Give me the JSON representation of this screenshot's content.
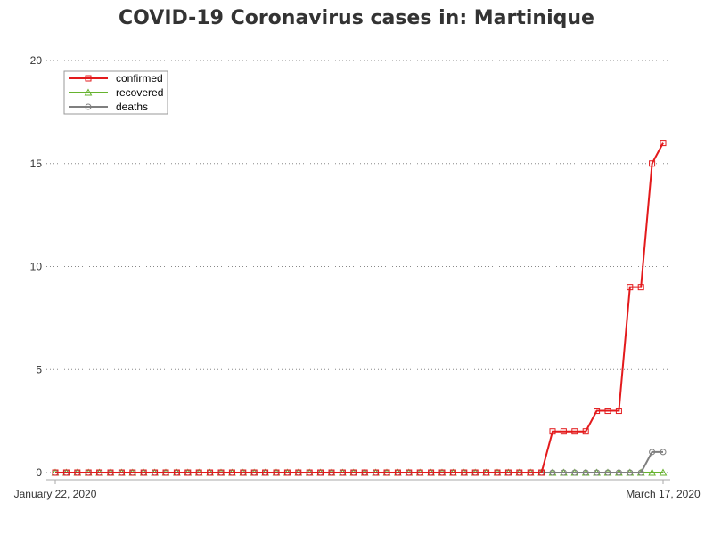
{
  "chart_data": {
    "type": "line",
    "title": "COVID-19 Coronavirus cases in: Martinique",
    "xlabel": "",
    "ylabel": "",
    "x_start": "January 22, 2020",
    "x_end": "March 17, 2020",
    "x_tick_labels": [
      "January 22, 2020",
      "March 17, 2020"
    ],
    "ylim": [
      0,
      20
    ],
    "yticks": [
      0,
      5,
      10,
      15,
      20
    ],
    "grid": "horizontal-dotted",
    "legend_placement": "top-left",
    "series": [
      {
        "name": "confirmed",
        "color": "#e31a1c",
        "marker": "square",
        "values": [
          0,
          0,
          0,
          0,
          0,
          0,
          0,
          0,
          0,
          0,
          0,
          0,
          0,
          0,
          0,
          0,
          0,
          0,
          0,
          0,
          0,
          0,
          0,
          0,
          0,
          0,
          0,
          0,
          0,
          0,
          0,
          0,
          0,
          0,
          0,
          0,
          0,
          0,
          0,
          0,
          0,
          0,
          0,
          0,
          0,
          2,
          2,
          2,
          2,
          3,
          3,
          3,
          9,
          9,
          15,
          16
        ]
      },
      {
        "name": "recovered",
        "color": "#66b32e",
        "marker": "triangle",
        "values": [
          0,
          0,
          0,
          0,
          0,
          0,
          0,
          0,
          0,
          0,
          0,
          0,
          0,
          0,
          0,
          0,
          0,
          0,
          0,
          0,
          0,
          0,
          0,
          0,
          0,
          0,
          0,
          0,
          0,
          0,
          0,
          0,
          0,
          0,
          0,
          0,
          0,
          0,
          0,
          0,
          0,
          0,
          0,
          0,
          0,
          0,
          0,
          0,
          0,
          0,
          0,
          0,
          0,
          0,
          0,
          0
        ]
      },
      {
        "name": "deaths",
        "color": "#7f7f7f",
        "marker": "circle",
        "values": [
          0,
          0,
          0,
          0,
          0,
          0,
          0,
          0,
          0,
          0,
          0,
          0,
          0,
          0,
          0,
          0,
          0,
          0,
          0,
          0,
          0,
          0,
          0,
          0,
          0,
          0,
          0,
          0,
          0,
          0,
          0,
          0,
          0,
          0,
          0,
          0,
          0,
          0,
          0,
          0,
          0,
          0,
          0,
          0,
          0,
          0,
          0,
          0,
          0,
          0,
          0,
          0,
          0,
          0,
          1,
          1
        ]
      }
    ]
  }
}
